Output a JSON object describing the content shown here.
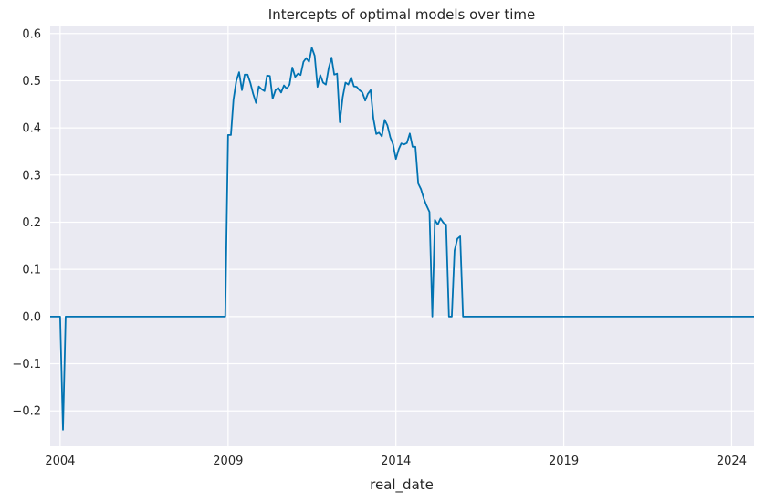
{
  "chart_data": {
    "type": "line",
    "title": "Intercepts of optimal models over time",
    "xlabel": "real_date",
    "ylabel": "",
    "x_tick_labels": [
      "2004",
      "2009",
      "2014",
      "2019",
      "2024"
    ],
    "x_tick_values": [
      "2004-01-01",
      "2009-01-01",
      "2014-01-01",
      "2019-01-01",
      "2024-01-01"
    ],
    "y_tick_labels": [
      "−0.2",
      "−0.1",
      "0.0",
      "0.1",
      "0.2",
      "0.3",
      "0.4",
      "0.5",
      "0.6"
    ],
    "y_tick_values": [
      -0.2,
      -0.1,
      0.0,
      0.1,
      0.2,
      0.3,
      0.4,
      0.5,
      0.6
    ],
    "xlim": [
      "2003-09-15",
      "2024-09-01"
    ],
    "ylim": [
      -0.275,
      0.615
    ],
    "grid": true,
    "background_color": "#eaeaf2",
    "grid_color": "#ffffff",
    "series": [
      {
        "color": "#0173b2",
        "x": [
          "2003-09-15",
          "2004-01-01",
          "2004-02-01",
          "2004-03-01",
          "2004-04-01",
          "2008-12-01",
          "2009-01-01",
          "2009-02-01",
          "2009-03-01",
          "2009-04-01",
          "2009-05-01",
          "2009-06-01",
          "2009-07-01",
          "2009-08-01",
          "2009-09-01",
          "2009-10-01",
          "2009-11-01",
          "2009-12-01",
          "2010-01-01",
          "2010-02-01",
          "2010-03-01",
          "2010-04-01",
          "2010-05-01",
          "2010-06-01",
          "2010-07-01",
          "2010-08-01",
          "2010-09-01",
          "2010-10-01",
          "2010-11-01",
          "2010-12-01",
          "2011-01-01",
          "2011-02-01",
          "2011-03-01",
          "2011-04-01",
          "2011-05-01",
          "2011-06-01",
          "2011-07-01",
          "2011-08-01",
          "2011-09-01",
          "2011-10-01",
          "2011-11-01",
          "2011-12-01",
          "2012-01-01",
          "2012-02-01",
          "2012-03-01",
          "2012-04-01",
          "2012-05-01",
          "2012-06-01",
          "2012-07-01",
          "2012-08-01",
          "2012-09-01",
          "2012-10-01",
          "2012-11-01",
          "2012-12-01",
          "2013-01-01",
          "2013-02-01",
          "2013-03-01",
          "2013-04-01",
          "2013-05-01",
          "2013-06-01",
          "2013-07-01",
          "2013-08-01",
          "2013-09-01",
          "2013-10-01",
          "2013-11-01",
          "2013-12-01",
          "2014-01-01",
          "2014-02-01",
          "2014-03-01",
          "2014-04-01",
          "2014-05-01",
          "2014-06-01",
          "2014-07-01",
          "2014-08-01",
          "2014-09-01",
          "2014-10-01",
          "2014-11-01",
          "2014-12-01",
          "2015-01-01",
          "2015-02-01",
          "2015-03-01",
          "2015-04-01",
          "2015-05-01",
          "2015-06-01",
          "2015-07-01",
          "2015-08-01",
          "2015-09-01",
          "2015-10-01",
          "2015-11-01",
          "2015-12-01",
          "2016-01-01",
          "2016-02-01",
          "2024-09-01"
        ],
        "values": [
          0.0,
          0.0,
          -0.24,
          0.0,
          0.0,
          0.0,
          0.385,
          0.385,
          0.46,
          0.5,
          0.518,
          0.48,
          0.513,
          0.513,
          0.495,
          0.472,
          0.453,
          0.488,
          0.482,
          0.478,
          0.511,
          0.51,
          0.462,
          0.48,
          0.485,
          0.475,
          0.49,
          0.483,
          0.492,
          0.528,
          0.508,
          0.515,
          0.512,
          0.54,
          0.548,
          0.54,
          0.57,
          0.553,
          0.487,
          0.512,
          0.496,
          0.492,
          0.527,
          0.549,
          0.513,
          0.515,
          0.412,
          0.465,
          0.496,
          0.492,
          0.507,
          0.488,
          0.487,
          0.48,
          0.475,
          0.458,
          0.472,
          0.48,
          0.42,
          0.387,
          0.39,
          0.382,
          0.417,
          0.405,
          0.38,
          0.365,
          0.334,
          0.355,
          0.367,
          0.365,
          0.368,
          0.388,
          0.36,
          0.36,
          0.282,
          0.27,
          0.25,
          0.235,
          0.222,
          0.0,
          0.205,
          0.195,
          0.208,
          0.199,
          0.195,
          0.0,
          0.0,
          0.14,
          0.165,
          0.17,
          0.0,
          0.0,
          0.0
        ]
      }
    ]
  }
}
